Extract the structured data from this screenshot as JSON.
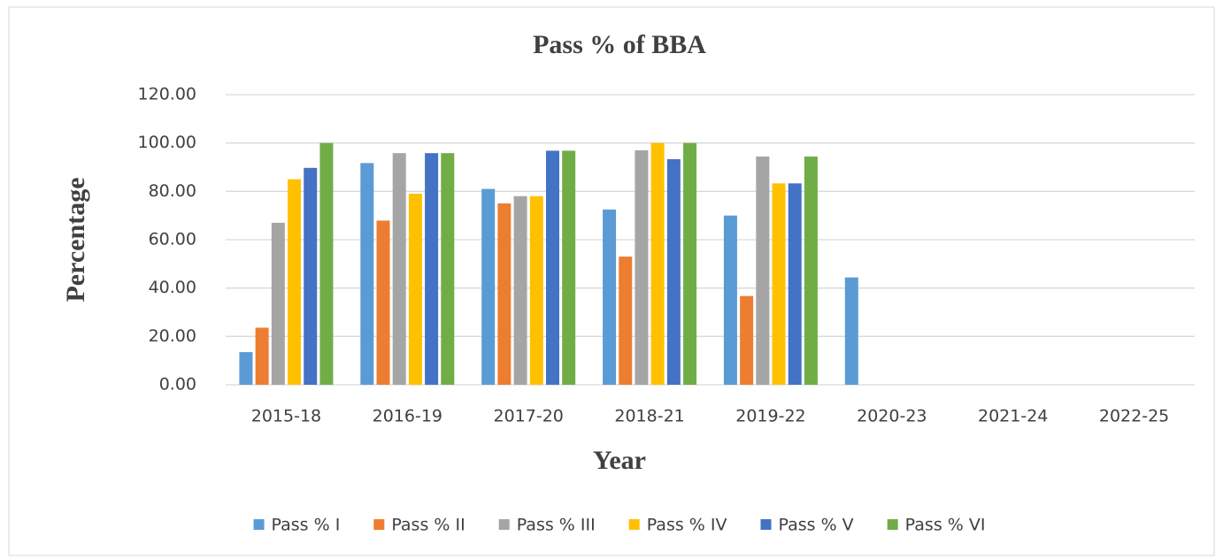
{
  "chart_data": {
    "type": "bar",
    "title": "Pass % of BBA",
    "x_label": "Year",
    "y_label": "Percentage",
    "categories": [
      "2015-18",
      "2016-19",
      "2017-20",
      "2018-21",
      "2019-22",
      "2020-23",
      "2021-24",
      "2022-25"
    ],
    "series": [
      {
        "name": "Pass % I",
        "color": "#5b9bd5",
        "values": [
          13.5,
          91.7,
          81,
          72.5,
          70,
          44.4,
          null,
          null
        ]
      },
      {
        "name": "Pass % II",
        "color": "#ed7d31",
        "values": [
          23.6,
          67.9,
          75,
          53,
          36.7,
          null,
          null,
          null
        ]
      },
      {
        "name": "Pass % III",
        "color": "#a5a5a5",
        "values": [
          67,
          95.8,
          78,
          97,
          94.4,
          null,
          null,
          null
        ]
      },
      {
        "name": "Pass % IV",
        "color": "#ffc000",
        "values": [
          85,
          79,
          78,
          100,
          83.3,
          null,
          null,
          null
        ]
      },
      {
        "name": "Pass % V",
        "color": "#4472c4",
        "values": [
          89.7,
          95.8,
          96.8,
          93.3,
          83.3,
          null,
          null,
          null
        ]
      },
      {
        "name": "Pass % VI",
        "color": "#70ad47",
        "values": [
          100,
          95.8,
          96.8,
          100,
          94.4,
          null,
          null,
          null
        ]
      }
    ],
    "ylim": [
      0,
      120
    ],
    "yticks": [
      {
        "value": 0,
        "label": "0.00"
      },
      {
        "value": 20,
        "label": "20.00"
      },
      {
        "value": 40,
        "label": "40.00"
      },
      {
        "value": 60,
        "label": "60.00"
      },
      {
        "value": 80,
        "label": "80.00"
      },
      {
        "value": 100,
        "label": "100.00"
      },
      {
        "value": 120,
        "label": "120.00"
      }
    ],
    "grid": true,
    "legend": "bottom"
  }
}
